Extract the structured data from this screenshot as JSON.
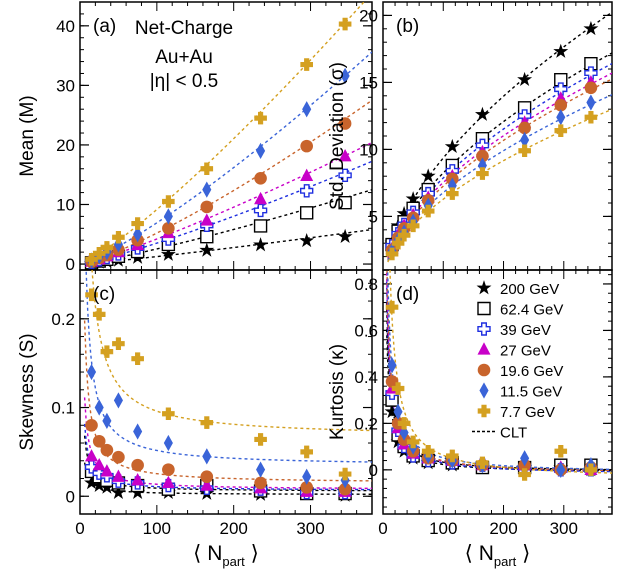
{
  "series_styles": [
    {
      "name": "200 GeV",
      "color": "#000000",
      "marker": "star"
    },
    {
      "name": "62.4 GeV",
      "color": "#000000",
      "marker": "square-open"
    },
    {
      "name": "39 GeV",
      "color": "#1f2fe0",
      "marker": "cross-open"
    },
    {
      "name": "27 GeV",
      "color": "#c800c8",
      "marker": "triangle"
    },
    {
      "name": "19.6 GeV",
      "color": "#c8642c",
      "marker": "circle"
    },
    {
      "name": "11.5 GeV",
      "color": "#3a64d8",
      "marker": "diamond"
    },
    {
      "name": "7.7 GeV",
      "color": "#d4a020",
      "marker": "cross"
    }
  ],
  "legend": {
    "clt_label": "CLT"
  },
  "chart_data": [
    {
      "type": "scatter",
      "panel_label": "(a)",
      "annotation": [
        "Net-Charge",
        "Au+Au",
        "|η| < 0.5"
      ],
      "xlabel": "⟨ N",
      "xlabel_sub": "part",
      "xlabel_close": " ⟩",
      "ylabel": "Mean (M)",
      "xlim": [
        0,
        380
      ],
      "ylim": [
        -1,
        44
      ],
      "xticks": [],
      "yticks": [
        0,
        10,
        20,
        30,
        40
      ],
      "x": [
        15,
        25,
        35,
        50,
        75,
        115,
        165,
        235,
        295,
        345
      ],
      "series": [
        {
          "name": "200 GeV",
          "values": [
            0.1,
            0.3,
            0.4,
            0.6,
            1.1,
            1.6,
            2.3,
            3.2,
            3.9,
            4.6
          ]
        },
        {
          "name": "62.4 GeV",
          "values": [
            0.2,
            0.5,
            0.8,
            1.3,
            2.1,
            3.3,
            4.6,
            6.4,
            8.6,
            10.3
          ]
        },
        {
          "name": "39 GeV",
          "values": [
            0.3,
            0.7,
            1.1,
            1.7,
            2.7,
            4.2,
            6.5,
            9.0,
            12.3,
            14.9
          ]
        },
        {
          "name": "27 GeV",
          "values": [
            0.4,
            0.8,
            1.3,
            2.0,
            3.2,
            5.2,
            7.3,
            10.9,
            14.8,
            18.1
          ]
        },
        {
          "name": "19.6 GeV",
          "values": [
            0.4,
            1.0,
            1.5,
            2.4,
            4.0,
            6.0,
            9.6,
            14.4,
            19.8,
            23.6
          ]
        },
        {
          "name": "11.5 GeV",
          "values": [
            0.6,
            1.3,
            2.0,
            3.3,
            5.0,
            8.0,
            12.5,
            19.0,
            26.0,
            31.6
          ]
        },
        {
          "name": "7.7 GeV",
          "values": [
            0.8,
            1.8,
            2.8,
            4.5,
            6.8,
            10.5,
            16.0,
            24.5,
            33.5,
            40.3
          ]
        }
      ]
    },
    {
      "type": "scatter",
      "panel_label": "(b)",
      "xlabel": "",
      "ylabel": "Std. Deviation (σ)",
      "xlim": [
        0,
        380
      ],
      "ylim": [
        1.0,
        21.0
      ],
      "xticks": [],
      "yticks": [
        5,
        10,
        15,
        20
      ],
      "x": [
        15,
        25,
        35,
        50,
        75,
        115,
        165,
        235,
        295,
        345
      ],
      "series": [
        {
          "name": "200 GeV",
          "values": [
            3.0,
            4.3,
            5.2,
            6.3,
            8.0,
            10.2,
            12.6,
            15.2,
            17.3,
            19.0
          ]
        },
        {
          "name": "62.4 GeV",
          "values": [
            2.9,
            3.9,
            4.6,
            5.6,
            7.0,
            8.8,
            10.8,
            13.1,
            15.2,
            16.4
          ]
        },
        {
          "name": "39 GeV",
          "values": [
            2.8,
            3.7,
            4.4,
            5.3,
            6.7,
            8.4,
            10.3,
            12.5,
            14.5,
            15.7
          ]
        },
        {
          "name": "27 GeV",
          "values": [
            2.6,
            3.6,
            4.3,
            5.1,
            6.4,
            8.0,
            9.8,
            12.0,
            13.8,
            15.0
          ]
        },
        {
          "name": "19.6 GeV",
          "values": [
            2.5,
            3.4,
            4.1,
            4.9,
            6.2,
            7.8,
            9.5,
            11.6,
            13.3,
            14.6
          ]
        },
        {
          "name": "11.5 GeV",
          "values": [
            2.4,
            3.2,
            3.8,
            4.6,
            5.8,
            7.3,
            8.8,
            10.7,
            12.4,
            13.5
          ]
        },
        {
          "name": "7.7 GeV",
          "values": [
            2.2,
            3.0,
            3.6,
            4.3,
            5.4,
            6.7,
            8.2,
            9.9,
            11.4,
            12.4
          ]
        }
      ]
    },
    {
      "type": "scatter",
      "panel_label": "(c)",
      "xlabel": "⟨ N",
      "xlabel_sub": "part",
      "xlabel_close": " ⟩",
      "ylabel": "Skewness (S)",
      "xlim": [
        0,
        380
      ],
      "ylim": [
        -0.02,
        0.255
      ],
      "xticks": [
        0,
        100,
        200,
        300
      ],
      "yticks": [
        0,
        0.1,
        0.2
      ],
      "x": [
        15,
        25,
        35,
        50,
        75,
        115,
        165,
        235,
        295,
        345
      ],
      "series": [
        {
          "name": "200 GeV",
          "values": [
            0.015,
            0.012,
            0.01,
            0.004,
            0.004,
            0.004,
            0.003,
            0.002,
            0.004,
            0.001
          ]
        },
        {
          "name": "62.4 GeV",
          "values": [
            0.028,
            0.022,
            0.018,
            0.015,
            0.012,
            0.008,
            0.012,
            0.006,
            0.003,
            0.003
          ]
        },
        {
          "name": "39 GeV",
          "values": [
            0.033,
            0.026,
            0.023,
            0.017,
            0.015,
            0.012,
            0.009,
            0.008,
            0.004,
            0.004
          ]
        },
        {
          "name": "27 GeV",
          "values": [
            0.045,
            0.035,
            0.028,
            0.022,
            0.018,
            0.015,
            0.012,
            0.009,
            0.005,
            0.005
          ]
        },
        {
          "name": "19.6 GeV",
          "values": [
            0.08,
            0.062,
            0.052,
            0.044,
            0.035,
            0.03,
            0.022,
            0.015,
            0.01,
            0.008
          ]
        },
        {
          "name": "11.5 GeV",
          "values": [
            0.14,
            0.1,
            0.085,
            0.108,
            0.073,
            0.06,
            0.045,
            0.03,
            0.022,
            0.018
          ]
        },
        {
          "name": "7.7 GeV",
          "values": [
            0.227,
            0.205,
            0.163,
            0.172,
            0.155,
            0.093,
            0.083,
            0.064,
            0.05,
            0.025
          ]
        }
      ]
    },
    {
      "type": "scatter",
      "panel_label": "(d)",
      "xlabel": "⟨ N",
      "xlabel_sub": "part",
      "xlabel_close": " ⟩",
      "ylabel": "Kurtosis (κ)",
      "xlim": [
        0,
        380
      ],
      "ylim": [
        -0.19,
        0.86
      ],
      "xticks": [
        0,
        100,
        200,
        300
      ],
      "yticks": [
        0,
        0.2,
        0.4,
        0.6,
        0.8
      ],
      "x": [
        15,
        25,
        35,
        50,
        75,
        115,
        165,
        235,
        295,
        345
      ],
      "series": [
        {
          "name": "200 GeV",
          "values": [
            0.25,
            0.12,
            0.08,
            0.05,
            0.03,
            0.02,
            0.01,
            0.01,
            0.01,
            0.0
          ]
        },
        {
          "name": "62.4 GeV",
          "values": [
            0.3,
            0.15,
            0.1,
            0.06,
            0.04,
            0.03,
            0.01,
            0.01,
            0.02,
            0.02
          ]
        },
        {
          "name": "39 GeV",
          "values": [
            0.33,
            0.17,
            0.1,
            0.06,
            0.04,
            0.03,
            0.02,
            0.01,
            0.0,
            0.0
          ]
        },
        {
          "name": "27 GeV",
          "values": [
            0.35,
            0.18,
            0.11,
            0.07,
            0.05,
            0.04,
            0.02,
            0.02,
            0.01,
            0.0
          ]
        },
        {
          "name": "19.6 GeV",
          "values": [
            0.38,
            0.2,
            0.13,
            0.08,
            0.05,
            0.04,
            0.02,
            0.02,
            0.0,
            0.01
          ]
        },
        {
          "name": "11.5 GeV",
          "values": [
            0.45,
            0.25,
            0.16,
            0.1,
            0.06,
            0.04,
            0.02,
            0.05,
            0.0,
            0.02
          ]
        },
        {
          "name": "7.7 GeV",
          "values": [
            0.7,
            0.35,
            0.2,
            0.12,
            0.08,
            0.06,
            0.03,
            -0.02,
            0.08,
            0.0
          ]
        }
      ]
    }
  ]
}
